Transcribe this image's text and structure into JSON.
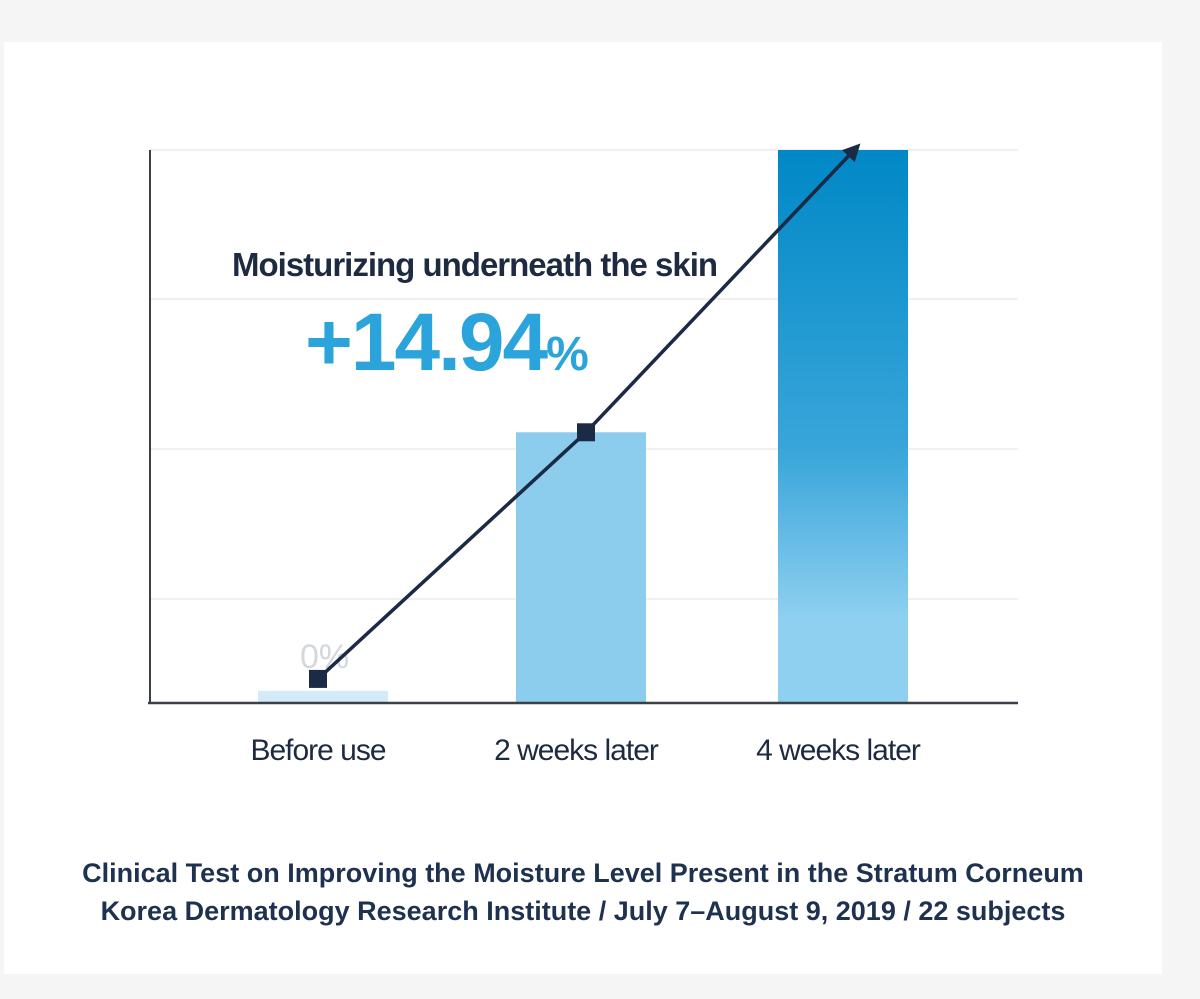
{
  "chart_data": {
    "type": "bar",
    "categories": [
      "Before use",
      "2 weeks later",
      "4 weeks later"
    ],
    "values": [
      0.3,
      7.3,
      14.94
    ],
    "ylim": [
      0,
      14.94
    ],
    "grid": true,
    "data_labels": [
      "0%"
    ],
    "annotation": {
      "label": "Moisturizing underneath the skin",
      "value": "+14.94",
      "unit": "%"
    },
    "trend_arrow": true,
    "colors": {
      "bar_before": "#d3ebf8",
      "bar_2w": "#8ccdee",
      "bar_4w_top": "#0088c6",
      "bar_4w_bottom": "#8fd0f0",
      "arrow": "#1b2a45",
      "axis": "#3a3f48",
      "grid": "#ececec"
    }
  },
  "caption": {
    "line1": "Clinical Test on Improving the Moisture Level Present in the Stratum Corneum",
    "line2": "Korea Dermatology Research Institute / July 7–August 9, 2019 / 22 subjects"
  }
}
